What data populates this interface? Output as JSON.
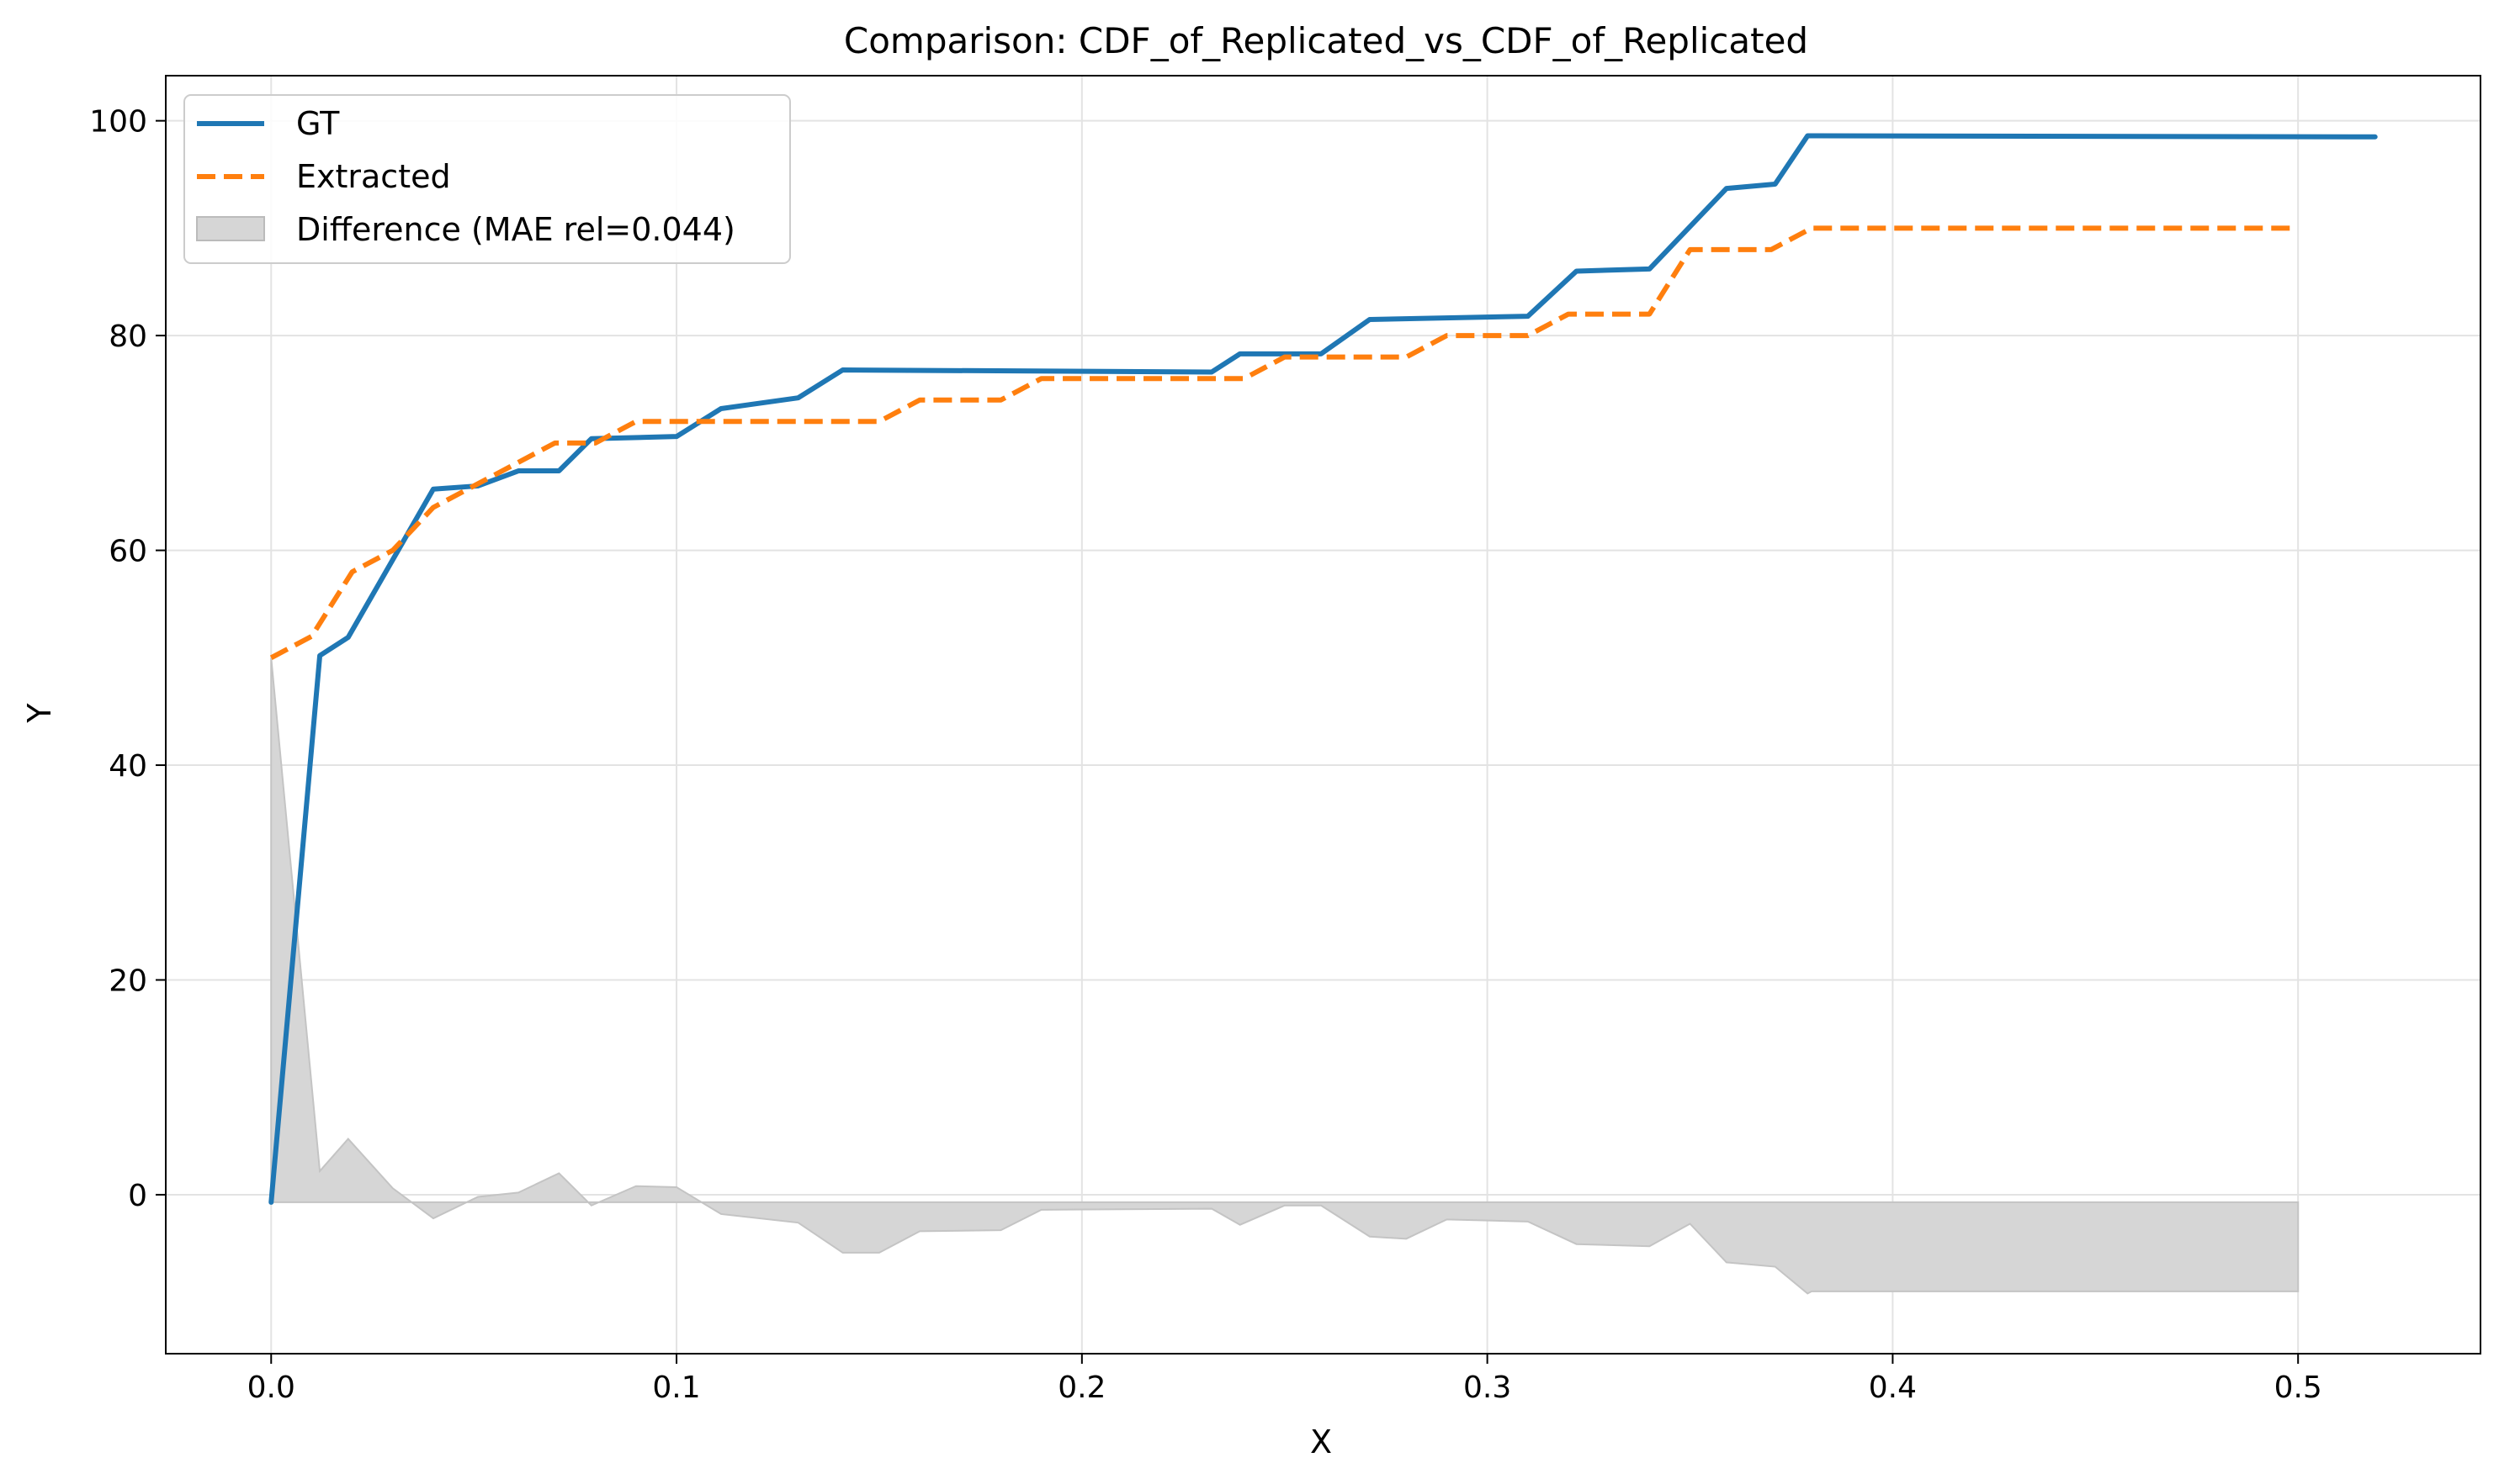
{
  "chart_data": {
    "type": "line",
    "title": "Comparison: CDF_of_Replicated_vs_CDF_of_Replicated",
    "xlabel": "X",
    "ylabel": "Y",
    "xlim": [
      -0.026,
      0.545
    ],
    "ylim": [
      -14.8,
      104.2
    ],
    "xticks": [
      0.0,
      0.1,
      0.2,
      0.3,
      0.4,
      0.5
    ],
    "xtick_labels": [
      "0.0",
      "0.1",
      "0.2",
      "0.3",
      "0.4",
      "0.5"
    ],
    "yticks": [
      0,
      20,
      40,
      60,
      80,
      100
    ],
    "ytick_labels": [
      "0",
      "20",
      "40",
      "60",
      "80",
      "100"
    ],
    "grid": true,
    "legend_position": "top-left",
    "series": [
      {
        "name": "GT",
        "style": "solid",
        "color": "#1f77b4",
        "x": [
          0.0,
          0.012,
          0.019,
          0.04,
          0.051,
          0.061,
          0.071,
          0.079,
          0.1,
          0.111,
          0.13,
          0.141,
          0.232,
          0.239,
          0.259,
          0.271,
          0.31,
          0.322,
          0.34,
          0.359,
          0.371,
          0.379,
          0.519
        ],
        "y": [
          -0.7,
          50.2,
          51.9,
          65.7,
          66.0,
          67.4,
          67.4,
          70.4,
          70.6,
          73.2,
          74.2,
          76.8,
          76.6,
          78.3,
          78.3,
          81.5,
          81.8,
          86.0,
          86.2,
          93.7,
          94.1,
          98.6,
          98.5
        ]
      },
      {
        "name": "Extracted",
        "style": "dashed",
        "color": "#ff7f0e",
        "x": [
          0.0,
          0.01,
          0.02,
          0.03,
          0.04,
          0.05,
          0.06,
          0.07,
          0.08,
          0.09,
          0.11,
          0.13,
          0.15,
          0.16,
          0.18,
          0.19,
          0.24,
          0.25,
          0.28,
          0.29,
          0.31,
          0.32,
          0.34,
          0.35,
          0.37,
          0.38,
          0.5
        ],
        "y": [
          50.0,
          52.0,
          58.0,
          60.0,
          64.0,
          66.0,
          68.0,
          70.0,
          70.0,
          72.0,
          72.0,
          72.0,
          72.0,
          74.0,
          74.0,
          76.0,
          76.0,
          78.0,
          78.0,
          80.0,
          80.0,
          82.0,
          82.0,
          88.0,
          88.0,
          90.0,
          90.0
        ]
      }
    ],
    "difference": {
      "name": "Difference (MAE rel=0.044)",
      "color": "#d6d6d6",
      "baseline": -0.7,
      "x": [
        0.0,
        0.012,
        0.019,
        0.03,
        0.04,
        0.051,
        0.061,
        0.071,
        0.079,
        0.09,
        0.1,
        0.111,
        0.13,
        0.141,
        0.15,
        0.16,
        0.18,
        0.19,
        0.232,
        0.239,
        0.25,
        0.259,
        0.271,
        0.28,
        0.29,
        0.31,
        0.322,
        0.34,
        0.35,
        0.359,
        0.371,
        0.379,
        0.38,
        0.5
      ],
      "y": [
        50.0,
        2.2,
        5.2,
        0.6,
        -2.2,
        -0.2,
        0.2,
        2.0,
        -1.0,
        0.8,
        0.7,
        -1.8,
        -2.6,
        -5.4,
        -5.4,
        -3.4,
        -3.3,
        -1.4,
        -1.3,
        -2.8,
        -1.0,
        -1.0,
        -3.9,
        -4.1,
        -2.3,
        -2.5,
        -4.6,
        -4.8,
        -2.7,
        -6.3,
        -6.7,
        -9.2,
        -9.0,
        -9.0
      ]
    }
  }
}
